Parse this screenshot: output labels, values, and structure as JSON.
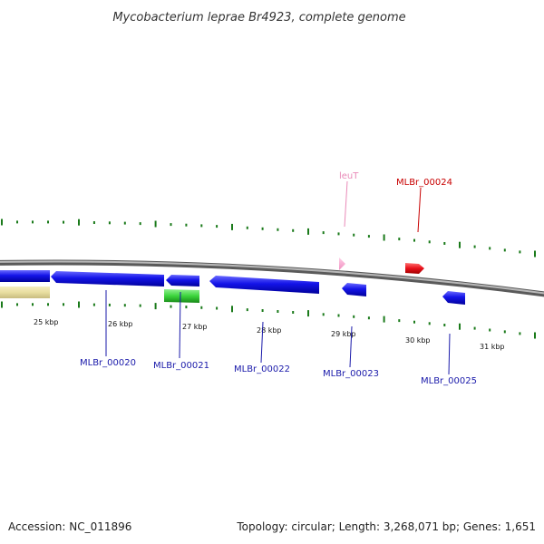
{
  "title": "Mycobacterium leprae Br4923, complete genome",
  "footer": {
    "accession": "Accession: NC_011896",
    "summary": "Topology: circular; Length: 3,268,071 bp; Genes: 1,651"
  },
  "colors": {
    "backbone": "#8a8a8a",
    "tick": "#1a7a1a",
    "cds": "#1010e6",
    "cds_label": "#1a1aaa",
    "trna": "#f7a0c8",
    "trna_label": "#e98ab8",
    "highlight": "#e8101a",
    "highlight_label": "#c80000",
    "rrna": "#e8dea0",
    "other": "#3bd43b"
  },
  "scale": {
    "labels": [
      "25 kbp",
      "26 kbp",
      "27 kbp",
      "28 kbp",
      "29 kbp",
      "30 kbp",
      "31 kbp"
    ]
  },
  "genes": [
    {
      "name": "MLBr_00020",
      "type": "CDS"
    },
    {
      "name": "MLBr_00021",
      "type": "CDS"
    },
    {
      "name": "MLBr_00022",
      "type": "CDS"
    },
    {
      "name": "MLBr_00023",
      "type": "CDS"
    },
    {
      "name": "MLBr_00025",
      "type": "CDS"
    },
    {
      "name": "leuT",
      "type": "tRNA"
    },
    {
      "name": "MLBr_00024",
      "type": "CDS"
    }
  ]
}
